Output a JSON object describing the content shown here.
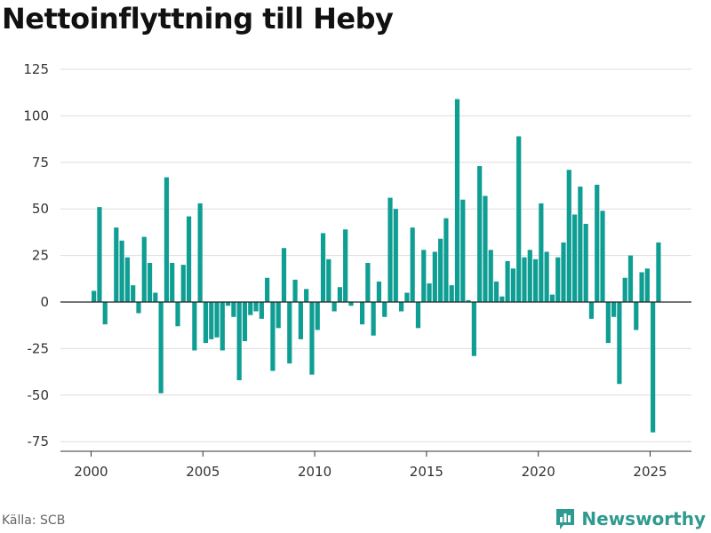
{
  "title": "Nettoinflyttning till Heby",
  "source": "Källa: SCB",
  "brand": {
    "name": "Newsworthy",
    "icon": "newsworthy-logo-icon"
  },
  "colors": {
    "bar": "#0f9e93",
    "grid": "#dddddd",
    "zero": "#222222",
    "brand": "#2f9a8f"
  },
  "chart_data": {
    "type": "bar",
    "title": "Nettoinflyttning till Heby",
    "xlabel": "",
    "ylabel": "",
    "ylim": [
      -80,
      130
    ],
    "xlim": [
      1999.0,
      2026.8
    ],
    "yticks": [
      125,
      100,
      75,
      50,
      25,
      0,
      -25,
      -50,
      -75
    ],
    "xticks": [
      2000,
      2005,
      2010,
      2015,
      2020,
      2025
    ],
    "grid": true,
    "legend": "none",
    "x": [
      2000.125,
      2000.375,
      2000.625,
      2000.875,
      2001.125,
      2001.375,
      2001.625,
      2001.875,
      2002.125,
      2002.375,
      2002.625,
      2002.875,
      2003.125,
      2003.375,
      2003.625,
      2003.875,
      2004.125,
      2004.375,
      2004.625,
      2004.875,
      2005.125,
      2005.375,
      2005.625,
      2005.875,
      2006.125,
      2006.375,
      2006.625,
      2006.875,
      2007.125,
      2007.375,
      2007.625,
      2007.875,
      2008.125,
      2008.375,
      2008.625,
      2008.875,
      2009.125,
      2009.375,
      2009.625,
      2009.875,
      2010.125,
      2010.375,
      2010.625,
      2010.875,
      2011.125,
      2011.375,
      2011.625,
      2011.875,
      2012.125,
      2012.375,
      2012.625,
      2012.875,
      2013.125,
      2013.375,
      2013.625,
      2013.875,
      2014.125,
      2014.375,
      2014.625,
      2014.875,
      2015.125,
      2015.375,
      2015.625,
      2015.875,
      2016.125,
      2016.375,
      2016.625,
      2016.875,
      2017.125,
      2017.375,
      2017.625,
      2017.875,
      2018.125,
      2018.375,
      2018.625,
      2018.875,
      2019.125,
      2019.375,
      2019.625,
      2019.875,
      2020.125,
      2020.375,
      2020.625,
      2020.875,
      2021.125,
      2021.375,
      2021.625,
      2021.875,
      2022.125,
      2022.375,
      2022.625,
      2022.875,
      2023.125,
      2023.375,
      2023.625,
      2023.875,
      2024.125,
      2024.375,
      2024.625,
      2024.875,
      2025.125,
      2025.375
    ],
    "values": [
      6,
      51,
      -12,
      0,
      40,
      33,
      24,
      9,
      -6,
      35,
      21,
      5,
      -49,
      67,
      21,
      -13,
      20,
      46,
      -26,
      53,
      -22,
      -20,
      -19,
      -26,
      -2,
      -8,
      -42,
      -21,
      -7,
      -5,
      -9,
      13,
      -37,
      -14,
      29,
      -33,
      12,
      -20,
      7,
      -39,
      -15,
      37,
      23,
      -5,
      8,
      39,
      -2,
      0,
      -12,
      21,
      -18,
      11,
      -8,
      56,
      50,
      -5,
      5,
      40,
      -14,
      28,
      10,
      27,
      34,
      45,
      9,
      109,
      55,
      1,
      -29,
      73,
      57,
      28,
      11,
      3,
      22,
      18,
      89,
      24,
      28,
      23,
      53,
      27,
      4,
      24,
      32,
      71,
      47,
      62,
      42,
      -9,
      63,
      49,
      -22,
      -8,
      -44,
      13,
      25,
      -15,
      16,
      18,
      -70,
      32
    ]
  }
}
